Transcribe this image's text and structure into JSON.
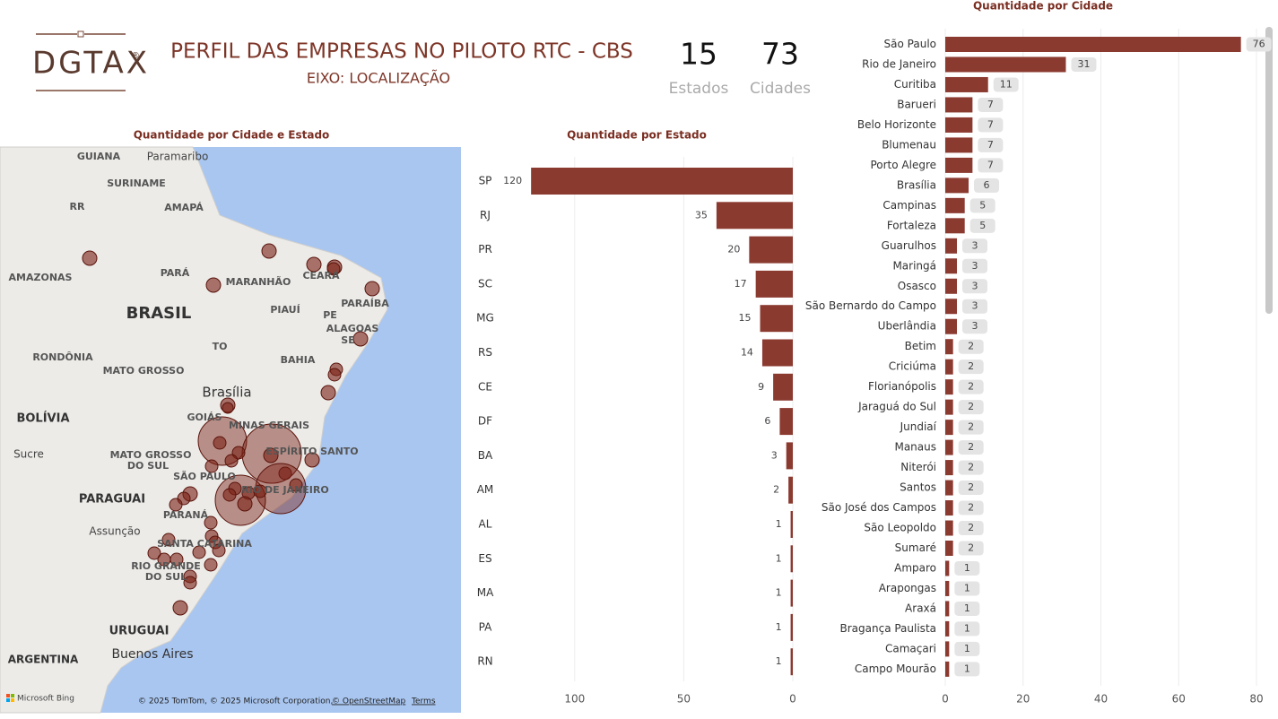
{
  "header": {
    "logo": "DGTAX",
    "logo_mark": "®",
    "title": "PERFIL DAS EMPRESAS NO PILOTO RTC - CBS",
    "subtitle": "EIXO: LOCALIZAÇÃO"
  },
  "kpis": [
    {
      "value": 15,
      "label": "Estados"
    },
    {
      "value": 73,
      "label": "Cidades"
    }
  ],
  "map": {
    "title": "Quantidade por Cidade e Estado",
    "labels": [
      "GUIANA",
      "Paramaribo",
      "SURINAME",
      "RR",
      "AMAPÁ",
      "AMAZONAS",
      "PARÁ",
      "MARANHÃO",
      "CEARÁ",
      "BRASIL",
      "PIAUÍ",
      "PE",
      "PARAÍBA",
      "ALAGOAS",
      "SE",
      "TO",
      "BAHIA",
      "RONDÔNIA",
      "MATO GROSSO",
      "Brasília",
      "GOIÁS",
      "MINAS GERAIS",
      "BOLÍVIA",
      "Sucre",
      "MATO GROSSO",
      "DO SUL",
      "ESPÍRITO SANTO",
      "SÃO PAULO",
      "RIO DE JANEIRO",
      "PARAGUAI",
      "PARANÁ",
      "Assunção",
      "SANTA CATARINA",
      "RIO GRANDE",
      "DO SUL",
      "URUGUAI",
      "Buenos Aires",
      "ARGENTINA"
    ],
    "attribution": {
      "brand": "Microsoft Bing",
      "copyright": "© 2025 TomTom, © 2025 Microsoft Corporation,",
      "osm": "© OpenStreetMap",
      "terms": "Terms"
    }
  },
  "chart_data": [
    {
      "type": "bar",
      "orientation": "horizontal",
      "title": "Quantidade por Estado",
      "categories": [
        "SP",
        "RJ",
        "PR",
        "SC",
        "MG",
        "RS",
        "CE",
        "DF",
        "BA",
        "AM",
        "AL",
        "ES",
        "MA",
        "PA",
        "RN"
      ],
      "values": [
        120,
        35,
        20,
        17,
        15,
        14,
        9,
        6,
        3,
        2,
        1,
        1,
        1,
        1,
        1
      ],
      "color": "#8b3a30",
      "xlim": [
        0,
        125
      ],
      "xticks": [
        0,
        50,
        100
      ],
      "x_reversed": true,
      "grid": true
    },
    {
      "type": "bar",
      "orientation": "horizontal",
      "title": "Quantidade por Cidade",
      "categories": [
        "São Paulo",
        "Rio de Janeiro",
        "Curitiba",
        "Barueri",
        "Belo Horizonte",
        "Blumenau",
        "Porto Alegre",
        "Brasília",
        "Campinas",
        "Fortaleza",
        "Guarulhos",
        "Maringá",
        "Osasco",
        "São Bernardo do Campo",
        "Uberlândia",
        "Betim",
        "Criciúma",
        "Florianópolis",
        "Jaraguá do Sul",
        "Jundiaí",
        "Manaus",
        "Niterói",
        "Santos",
        "São José dos Campos",
        "São Leopoldo",
        "Sumaré",
        "Amparo",
        "Arapongas",
        "Araxá",
        "Bragança Paulista",
        "Camaçari",
        "Campo Mourão"
      ],
      "values": [
        76,
        31,
        11,
        7,
        7,
        7,
        7,
        6,
        5,
        5,
        3,
        3,
        3,
        3,
        3,
        2,
        2,
        2,
        2,
        2,
        2,
        2,
        2,
        2,
        2,
        2,
        1,
        1,
        1,
        1,
        1,
        1
      ],
      "color": "#8b3a30",
      "xlim": [
        0,
        80
      ],
      "xticks": [
        0,
        20,
        40,
        60,
        80
      ],
      "x_reversed": false,
      "grid": true
    }
  ]
}
